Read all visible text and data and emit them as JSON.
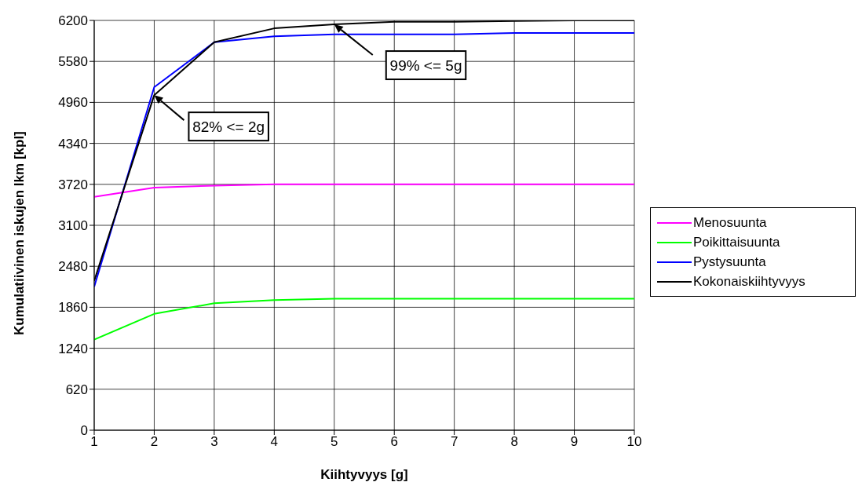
{
  "chart_data": {
    "type": "line",
    "xlabel": "Kiihtyvyys [g]",
    "ylabel": "Kumulatiivinen iskujen lkm [kpl]",
    "x": [
      1,
      2,
      3,
      4,
      5,
      6,
      7,
      8,
      9,
      10
    ],
    "series": [
      {
        "name": "Menosuunta",
        "color": "#ff00ff",
        "values": [
          3530,
          3670,
          3700,
          3720,
          3720,
          3720,
          3720,
          3720,
          3720,
          3720
        ]
      },
      {
        "name": "Poikittaisuunta",
        "color": "#00ff00",
        "values": [
          1370,
          1760,
          1920,
          1970,
          1990,
          1990,
          1990,
          1990,
          1990,
          1990
        ]
      },
      {
        "name": "Pystysuunta",
        "color": "#0000ff",
        "values": [
          2170,
          5190,
          5870,
          5960,
          5990,
          5990,
          5990,
          6010,
          6010,
          6010
        ]
      },
      {
        "name": "Kokonaiskiihtyvyys",
        "color": "#000000",
        "values": [
          2260,
          5070,
          5870,
          6080,
          6140,
          6180,
          6180,
          6190,
          6200,
          6200
        ]
      }
    ],
    "xlim": [
      1,
      10
    ],
    "xticks": [
      1,
      2,
      3,
      4,
      5,
      6,
      7,
      8,
      9,
      10
    ],
    "ylim": [
      0,
      6200
    ],
    "yticks": [
      0,
      620,
      1240,
      1860,
      2480,
      3100,
      3720,
      4340,
      4960,
      5580,
      6200
    ],
    "grid": true,
    "legend": "right",
    "marker": "none",
    "line_style": "solid",
    "annotations": [
      "82% <= 2g",
      "99% <= 5g"
    ]
  }
}
